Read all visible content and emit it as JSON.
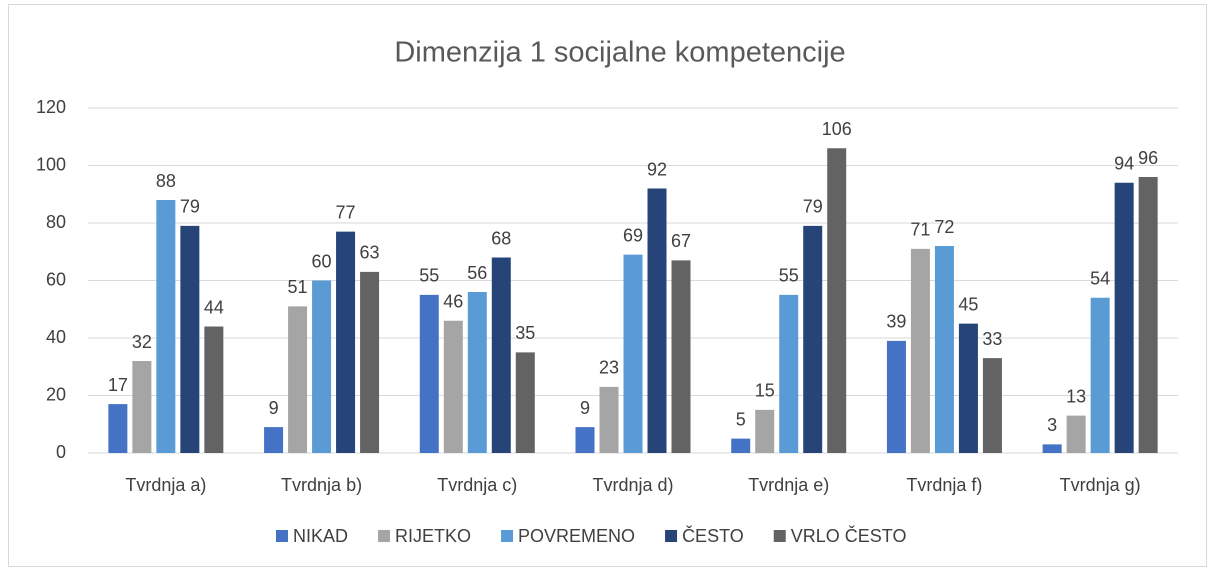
{
  "chart_data": {
    "type": "bar",
    "title": "Dimenzija 1 socijalne kompetencije",
    "categories": [
      "Tvrdnja a)",
      "Tvrdnja b)",
      "Tvrdnja c)",
      "Tvrdnja d)",
      "Tvrdnja e)",
      "Tvrdnja f)",
      "Tvrdnja g)"
    ],
    "series": [
      {
        "name": "NIKAD",
        "color": "#4472c4",
        "values": [
          17,
          9,
          55,
          9,
          5,
          39,
          3
        ]
      },
      {
        "name": "RIJETKO",
        "color": "#a5a5a5",
        "values": [
          32,
          51,
          46,
          23,
          15,
          71,
          13
        ]
      },
      {
        "name": "POVREMENO",
        "color": "#5b9bd5",
        "values": [
          88,
          60,
          56,
          69,
          55,
          72,
          54
        ]
      },
      {
        "name": "ČESTO",
        "color": "#264478",
        "values": [
          79,
          77,
          68,
          92,
          79,
          45,
          94
        ]
      },
      {
        "name": "VRLO ČESTO",
        "color": "#636363",
        "values": [
          44,
          63,
          35,
          67,
          106,
          33,
          96
        ]
      }
    ],
    "ylim": [
      0,
      120
    ],
    "yticks": [
      0,
      20,
      40,
      60,
      80,
      100,
      120
    ],
    "grid": true,
    "legend": "bottom"
  }
}
